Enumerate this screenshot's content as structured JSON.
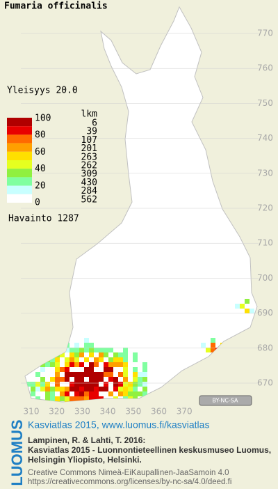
{
  "title": "Fumaria officinalis",
  "frequency": "Yleisyys  20.0",
  "legend": {
    "header": "lkm",
    "scale_labels": [
      "100",
      "80",
      "60",
      "40",
      "20",
      "0"
    ],
    "classes": [
      {
        "count": "6",
        "color": "#b00000"
      },
      {
        "count": "39",
        "color": "#e80000"
      },
      {
        "count": "107",
        "color": "#ff6a00"
      },
      {
        "count": "201",
        "color": "#ffa000"
      },
      {
        "count": "263",
        "color": "#ffe000"
      },
      {
        "count": "262",
        "color": "#e6ff20"
      },
      {
        "count": "309",
        "color": "#90f040"
      },
      {
        "count": "430",
        "color": "#80ffa0"
      },
      {
        "count": "284",
        "color": "#c8ffff"
      },
      {
        "count": "562",
        "color": "#ffffff"
      }
    ],
    "observation": "Havainto 1287"
  },
  "map": {
    "y_labels": [
      "770",
      "760",
      "750",
      "740",
      "730",
      "720",
      "710",
      "700",
      "690",
      "680",
      "670"
    ],
    "x_labels": [
      "310",
      "320",
      "330",
      "340",
      "350",
      "360",
      "370"
    ],
    "license_badge": "BY-NC-SA"
  },
  "footer": {
    "logo": "LUOMUS",
    "headline": "Kasviatlas 2015, www.luomus.fi/kasviatlas",
    "citation": [
      "Lampinen, R. & Lahti, T. 2016:",
      "Kasviatlas 2015 - Luonnontieteellinen keskusmuseo Luomus,",
      "Helsingin Yliopisto, Helsinki."
    ],
    "license": [
      "Creative Commons Nimeä-EiKaupallinen-JaaSamoin 4.0",
      "https://creativecommons.org/licenses/by-nc-sa/4.0/deed.fi"
    ]
  }
}
